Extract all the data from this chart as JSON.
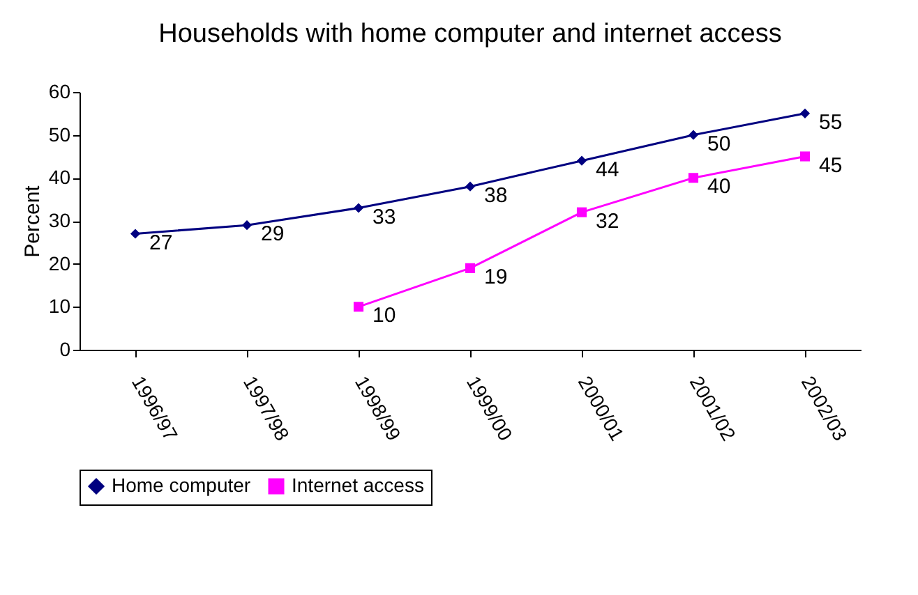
{
  "chart_data": {
    "type": "line",
    "title": "Households with home computer and internet access",
    "ylabel": "Percent",
    "categories": [
      "1996/97",
      "1997/98",
      "1998/99",
      "1999/00",
      "2000/01",
      "2001/02",
      "2002/03"
    ],
    "series": [
      {
        "name": "Home computer",
        "color": "#000080",
        "marker": "diamond",
        "values": [
          27,
          29,
          33,
          38,
          44,
          50,
          55
        ]
      },
      {
        "name": "Internet access",
        "color": "#ff00ff",
        "marker": "square",
        "values": [
          null,
          null,
          10,
          19,
          32,
          40,
          45
        ]
      }
    ],
    "ylim": [
      0,
      60
    ],
    "yticks": [
      0,
      10,
      20,
      30,
      40,
      50,
      60
    ],
    "grid": false,
    "legend": "bottom",
    "data_labels": true,
    "line_style": "solid"
  }
}
